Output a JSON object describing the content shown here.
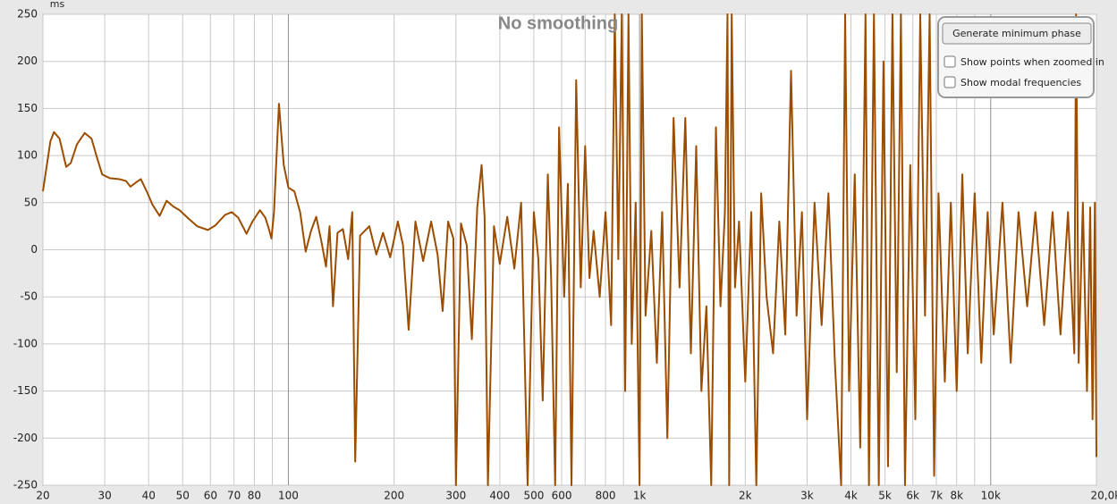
{
  "chart_data": {
    "type": "line",
    "title": "No smoothing",
    "y_unit": "ms",
    "color": "#9c4d00",
    "log_x": true,
    "grid": true,
    "x": [
      20,
      21,
      21.5,
      22.3,
      23.3,
      24,
      25,
      26.3,
      27.5,
      28.5,
      29.5,
      31,
      33,
      34.5,
      35.5,
      37,
      38,
      39.5,
      41,
      43,
      45,
      47,
      49,
      52,
      55,
      59,
      62,
      66,
      69,
      72,
      76,
      79,
      83,
      86,
      88,
      89.5,
      91,
      94,
      97,
      100,
      104,
      108,
      112,
      116,
      120,
      124,
      128,
      131,
      134,
      138,
      143,
      148,
      152,
      155,
      160,
      170,
      178,
      186,
      195,
      205,
      212,
      220,
      230,
      242,
      255,
      266,
      275,
      285,
      295,
      300,
      310,
      322,
      333,
      345,
      355,
      362,
      370,
      385,
      400,
      420,
      440,
      460,
      480,
      500,
      515,
      530,
      548,
      560,
      575,
      590,
      610,
      625,
      640,
      660,
      680,
      700,
      720,
      740,
      770,
      800,
      830,
      850,
      870,
      890,
      910,
      930,
      950,
      975,
      1000,
      1015,
      1040,
      1080,
      1120,
      1160,
      1200,
      1250,
      1300,
      1350,
      1400,
      1450,
      1500,
      1550,
      1600,
      1650,
      1700,
      1750,
      1780,
      1800,
      1830,
      1870,
      1920,
      2000,
      2080,
      2150,
      2220,
      2300,
      2400,
      2500,
      2600,
      2700,
      2800,
      2900,
      3000,
      3150,
      3300,
      3450,
      3600,
      3750,
      3850,
      3950,
      4100,
      4250,
      4400,
      4500,
      4650,
      4800,
      4950,
      5100,
      5250,
      5400,
      5550,
      5700,
      5900,
      6100,
      6300,
      6500,
      6700,
      6900,
      7100,
      7400,
      7700,
      8000,
      8300,
      8600,
      9000,
      9400,
      9800,
      10200,
      10800,
      11400,
      12000,
      12700,
      13400,
      14200,
      15000,
      15800,
      16600,
      17300,
      17500,
      17800,
      18300,
      18800,
      19200,
      19500,
      19800,
      20000
    ],
    "values": [
      62,
      115,
      125,
      118,
      88,
      92,
      112,
      124,
      118,
      98,
      80,
      76,
      75,
      73,
      67,
      72,
      75,
      62,
      48,
      36,
      52,
      46,
      42,
      33,
      25,
      21,
      26,
      37,
      40,
      34,
      17,
      30,
      42,
      34,
      22,
      12,
      40,
      155,
      90,
      66,
      62,
      40,
      -2,
      20,
      35,
      10,
      -18,
      25,
      -60,
      18,
      22,
      -10,
      40,
      -225,
      15,
      25,
      -5,
      18,
      -8,
      30,
      5,
      -85,
      30,
      -12,
      30,
      -5,
      -65,
      30,
      12,
      -250,
      28,
      5,
      -95,
      45,
      90,
      35,
      -250,
      25,
      -15,
      35,
      -20,
      50,
      -250,
      40,
      -10,
      -160,
      80,
      -30,
      -250,
      130,
      -50,
      70,
      -250,
      180,
      -40,
      110,
      -30,
      20,
      -50,
      40,
      -80,
      250,
      -10,
      250,
      -150,
      250,
      -100,
      50,
      -250,
      250,
      -70,
      20,
      -120,
      40,
      -200,
      140,
      -40,
      140,
      -110,
      110,
      -150,
      -60,
      -250,
      130,
      -60,
      40,
      250,
      -250,
      250,
      -40,
      30,
      -140,
      40,
      -250,
      60,
      -50,
      -110,
      30,
      -90,
      190,
      -70,
      40,
      -180,
      50,
      -80,
      60,
      -120,
      -250,
      250,
      -150,
      80,
      -210,
      250,
      -250,
      250,
      -250,
      200,
      -230,
      250,
      -130,
      250,
      -250,
      90,
      -180,
      250,
      -70,
      250,
      -240,
      60,
      -140,
      50,
      -150,
      80,
      -110,
      60,
      -120,
      40,
      -90,
      50,
      -120,
      40,
      -60,
      40,
      -80,
      40,
      -90,
      40,
      -110,
      250,
      -120,
      50,
      -150,
      45,
      -180,
      50,
      -220
    ],
    "xlim": [
      20,
      20000
    ],
    "xticks": [
      20,
      30,
      40,
      50,
      60,
      70,
      80,
      100,
      200,
      300,
      400,
      500,
      600,
      800,
      {
        "value": 1000,
        "label": "1k"
      },
      {
        "value": 2000,
        "label": "2k"
      },
      {
        "value": 3000,
        "label": "3k"
      },
      {
        "value": 4000,
        "label": "4k"
      },
      {
        "value": 5000,
        "label": "5k"
      },
      {
        "value": 6000,
        "label": "6k"
      },
      {
        "value": 7000,
        "label": "7k"
      },
      {
        "value": 8000,
        "label": "8k"
      },
      {
        "value": 10000,
        "label": "10k"
      },
      {
        "value": 20000,
        "label": "20,0kHz"
      }
    ],
    "x_minor_grid": [
      90,
      700,
      900,
      9000
    ],
    "ylim": [
      -250,
      250
    ],
    "yticks": [
      250,
      200,
      150,
      100,
      50,
      0,
      -50,
      -100,
      -150,
      -200,
      -250
    ]
  },
  "controls": {
    "button": "Generate minimum phase",
    "checkboxes": [
      {
        "label": "Show points when zoomed in",
        "checked": false
      },
      {
        "label": "Show modal frequencies",
        "checked": false
      }
    ]
  }
}
